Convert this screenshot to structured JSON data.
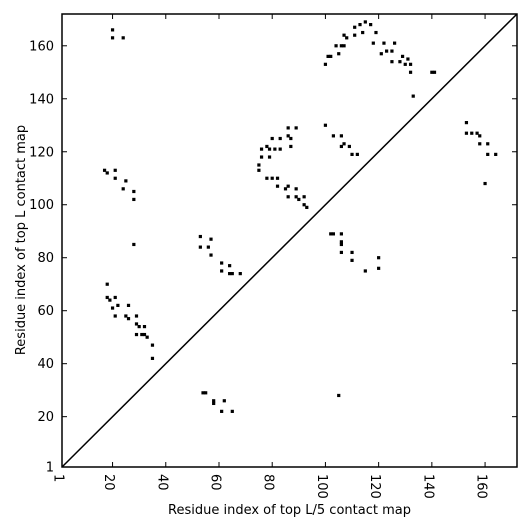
{
  "chart_data": {
    "type": "scatter",
    "title": "",
    "xlabel": "Residue index of top L/5 contact map",
    "ylabel": "Residue index of top L contact map",
    "xlim": [
      1,
      172
    ],
    "ylim": [
      1,
      172
    ],
    "x_ticks": [
      1,
      20,
      40,
      60,
      80,
      100,
      120,
      140,
      160
    ],
    "y_ticks": [
      1,
      20,
      40,
      60,
      80,
      100,
      120,
      140,
      160
    ],
    "grid": false,
    "legend": "none",
    "marker": "square",
    "marker_color": "#000000",
    "diagonal": {
      "from": [
        1,
        1
      ],
      "to": [
        172,
        172
      ],
      "color": "#000000"
    },
    "series": [
      {
        "name": "",
        "points": [
          [
            20,
            166
          ],
          [
            20,
            163
          ],
          [
            24,
            163
          ],
          [
            17,
            113
          ],
          [
            18,
            112
          ],
          [
            21,
            113
          ],
          [
            21,
            110
          ],
          [
            25,
            109
          ],
          [
            24,
            106
          ],
          [
            28,
            105
          ],
          [
            28,
            102
          ],
          [
            28,
            85
          ],
          [
            18,
            70
          ],
          [
            18,
            65
          ],
          [
            19,
            64
          ],
          [
            21,
            65
          ],
          [
            20,
            61
          ],
          [
            22,
            62
          ],
          [
            26,
            62
          ],
          [
            21,
            58
          ],
          [
            25,
            58
          ],
          [
            26,
            57
          ],
          [
            29,
            58
          ],
          [
            29,
            55
          ],
          [
            30,
            54
          ],
          [
            32,
            54
          ],
          [
            31,
            51
          ],
          [
            32,
            51
          ],
          [
            33,
            50
          ],
          [
            29,
            51
          ],
          [
            35,
            47
          ],
          [
            35,
            42
          ],
          [
            53,
            88
          ],
          [
            56,
            84
          ],
          [
            57,
            87
          ],
          [
            57,
            81
          ],
          [
            53,
            84
          ],
          [
            61,
            78
          ],
          [
            61,
            75
          ],
          [
            64,
            77
          ],
          [
            64,
            74
          ],
          [
            65,
            74
          ],
          [
            68,
            74
          ],
          [
            54,
            29
          ],
          [
            55,
            29
          ],
          [
            58,
            26
          ],
          [
            58,
            25
          ],
          [
            61,
            22
          ],
          [
            62,
            26
          ],
          [
            65,
            22
          ],
          [
            76,
            121
          ],
          [
            76,
            118
          ],
          [
            78,
            122
          ],
          [
            79,
            121
          ],
          [
            79,
            118
          ],
          [
            80,
            125
          ],
          [
            81,
            121
          ],
          [
            83,
            125
          ],
          [
            83,
            121
          ],
          [
            86,
            129
          ],
          [
            86,
            126
          ],
          [
            87,
            122
          ],
          [
            89,
            129
          ],
          [
            87,
            125
          ],
          [
            75,
            115
          ],
          [
            75,
            113
          ],
          [
            78,
            110
          ],
          [
            80,
            110
          ],
          [
            82,
            110
          ],
          [
            82,
            107
          ],
          [
            85,
            106
          ],
          [
            86,
            107
          ],
          [
            86,
            103
          ],
          [
            89,
            103
          ],
          [
            90,
            102
          ],
          [
            89,
            106
          ],
          [
            92,
            103
          ],
          [
            92,
            100
          ],
          [
            93,
            99
          ],
          [
            100,
            130
          ],
          [
            101,
            156
          ],
          [
            100,
            153
          ],
          [
            102,
            156
          ],
          [
            103,
            126
          ],
          [
            104,
            160
          ],
          [
            105,
            157
          ],
          [
            106,
            160
          ],
          [
            107,
            164
          ],
          [
            107,
            160
          ],
          [
            108,
            163
          ],
          [
            106,
            126
          ],
          [
            106,
            122
          ],
          [
            107,
            123
          ],
          [
            110,
            119
          ],
          [
            112,
            119
          ],
          [
            109,
            122
          ],
          [
            111,
            167
          ],
          [
            111,
            164
          ],
          [
            113,
            168
          ],
          [
            114,
            165
          ],
          [
            115,
            169
          ],
          [
            117,
            168
          ],
          [
            118,
            161
          ],
          [
            119,
            165
          ],
          [
            121,
            157
          ],
          [
            122,
            161
          ],
          [
            123,
            158
          ],
          [
            125,
            154
          ],
          [
            125,
            158
          ],
          [
            126,
            161
          ],
          [
            128,
            154
          ],
          [
            130,
            153
          ],
          [
            132,
            153
          ],
          [
            132,
            150
          ],
          [
            129,
            156
          ],
          [
            131,
            155
          ],
          [
            133,
            141
          ],
          [
            140,
            150
          ],
          [
            141,
            150
          ],
          [
            102,
            89
          ],
          [
            103,
            89
          ],
          [
            106,
            89
          ],
          [
            106,
            86
          ],
          [
            106,
            85
          ],
          [
            106,
            82
          ],
          [
            110,
            82
          ],
          [
            110,
            79
          ],
          [
            115,
            75
          ],
          [
            120,
            80
          ],
          [
            120,
            76
          ],
          [
            105,
            28
          ],
          [
            153,
            131
          ],
          [
            153,
            127
          ],
          [
            155,
            127
          ],
          [
            157,
            127
          ],
          [
            158,
            126
          ],
          [
            158,
            123
          ],
          [
            161,
            123
          ],
          [
            161,
            119
          ],
          [
            164,
            119
          ],
          [
            160,
            108
          ]
        ]
      }
    ]
  }
}
